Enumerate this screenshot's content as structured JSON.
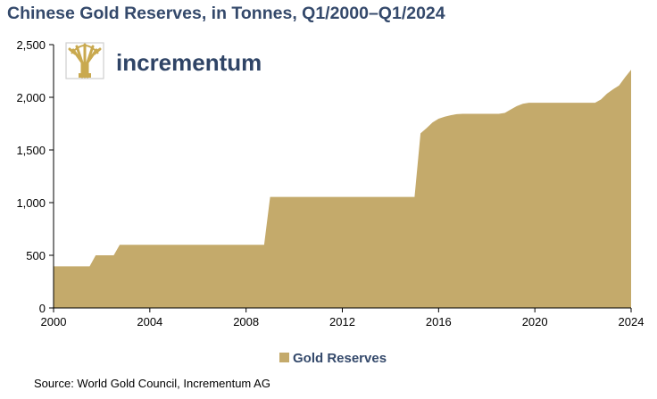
{
  "title": "Chinese Gold Reserves, in Tonnes, Q1/2000–Q1/2024",
  "logo": {
    "text": "incrementum"
  },
  "source": "Source: World Gold Council, Incrementum AG",
  "colors": {
    "fill": "#c4aa6b",
    "title": "#34496b",
    "logo_text": "#2f4466",
    "logo_mark": "#c9a94f"
  },
  "chart_data": {
    "type": "area",
    "title": "Chinese Gold Reserves, in Tonnes, Q1/2000–Q1/2024",
    "xlabel": "",
    "ylabel": "",
    "xlim": [
      2000,
      2024
    ],
    "ylim": [
      0,
      2500
    ],
    "xticks": [
      "2000",
      "2004",
      "2008",
      "2012",
      "2016",
      "2020",
      "2024"
    ],
    "yticks": [
      "0",
      "500",
      "1,000",
      "1,500",
      "2,000",
      "2,500"
    ],
    "grid": false,
    "legend": {
      "position": "bottom",
      "entries": [
        "Gold Reserves"
      ]
    },
    "series": [
      {
        "name": "Gold Reserves",
        "color": "#c4aa6b",
        "x": [
          2000.0,
          2001.5,
          2001.75,
          2002.5,
          2002.75,
          2008.75,
          2009.0,
          2015.0,
          2015.25,
          2015.5,
          2015.75,
          2016.0,
          2016.25,
          2016.5,
          2016.75,
          2017.0,
          2017.5,
          2018.0,
          2018.5,
          2018.75,
          2019.0,
          2019.25,
          2019.5,
          2019.75,
          2020.0,
          2021.0,
          2022.0,
          2022.5,
          2022.75,
          2023.0,
          2023.25,
          2023.5,
          2023.75,
          2024.0
        ],
        "values": [
          395,
          395,
          500,
          500,
          600,
          600,
          1054,
          1054,
          1658,
          1708,
          1762,
          1797,
          1815,
          1830,
          1840,
          1843,
          1843,
          1843,
          1843,
          1852,
          1885,
          1916,
          1938,
          1948,
          1948,
          1948,
          1948,
          1948,
          1980,
          2035,
          2076,
          2113,
          2191,
          2262
        ]
      }
    ]
  }
}
